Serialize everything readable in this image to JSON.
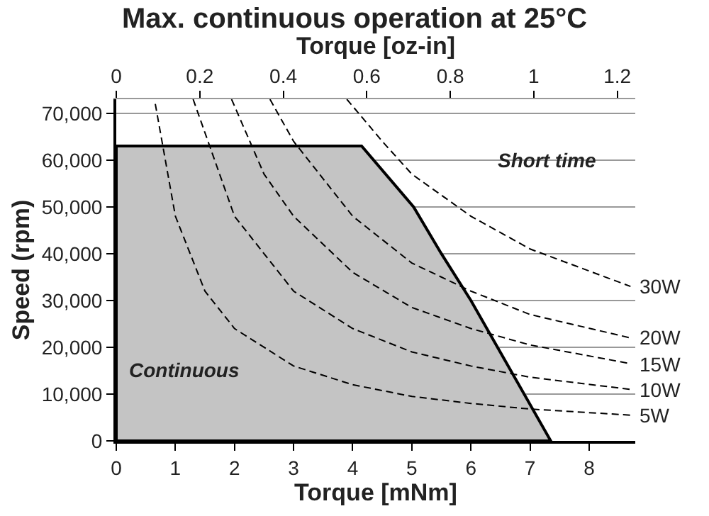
{
  "chart_data": {
    "type": "line",
    "title": "Max. continuous operation at 25°C",
    "xlabel": "Torque [mNm]",
    "ylabel": "Speed (rpm)",
    "x2label": "Torque [oz-in]",
    "xlim": [
      0,
      8.78
    ],
    "xticks": [
      0,
      1,
      2,
      3,
      4,
      5,
      6,
      7,
      8
    ],
    "x2lim": [
      0,
      1.243
    ],
    "x2ticks": [
      0,
      0.2,
      0.4,
      0.6,
      0.8,
      1,
      1.2
    ],
    "ylim": [
      0,
      73000
    ],
    "yticks": [
      0,
      {
        "value": 10000,
        "label": "10,000"
      },
      {
        "value": 20000,
        "label": "20,000"
      },
      {
        "value": 30000,
        "label": "30,000"
      },
      {
        "value": 40000,
        "label": "40,000"
      },
      {
        "value": 50000,
        "label": "50,000"
      },
      {
        "value": 60000,
        "label": "60,000"
      },
      {
        "value": 70000,
        "label": "70,000"
      }
    ],
    "grid": "y",
    "legend": false,
    "series": [
      {
        "type": "area",
        "color": "#c4c4c4",
        "x": [
          0,
          0,
          4.15,
          5.03,
          5.5,
          6.0,
          7.35
        ],
        "values": [
          0,
          63000,
          63000,
          50000,
          40000,
          30000,
          0
        ]
      },
      {
        "name": "5W",
        "color": "#000000",
        "line_style": "dashed",
        "x": [
          0.66,
          1,
          1.5,
          2,
          3,
          4,
          5,
          6,
          7,
          8.7
        ],
        "values": [
          72000,
          48000,
          32000,
          24000,
          16000,
          12000,
          9500,
          8000,
          6800,
          5500
        ]
      },
      {
        "name": "10W",
        "color": "#000000",
        "line_style": "dashed",
        "x": [
          1.3,
          2,
          3,
          4,
          5,
          6,
          7,
          8.7
        ],
        "values": [
          73000,
          48000,
          32000,
          24000,
          19000,
          16000,
          13600,
          11000
        ]
      },
      {
        "name": "15W",
        "color": "#000000",
        "line_style": "dashed",
        "x": [
          1.95,
          2.5,
          3,
          4,
          5,
          6,
          7,
          8.7
        ],
        "values": [
          73000,
          57000,
          48000,
          36000,
          28500,
          24000,
          20500,
          16500
        ]
      },
      {
        "name": "20W",
        "color": "#000000",
        "line_style": "dashed",
        "x": [
          2.6,
          3,
          4,
          5,
          6,
          7,
          8.7
        ],
        "values": [
          73000,
          64000,
          48000,
          38000,
          32000,
          27000,
          22000
        ]
      },
      {
        "name": "30W",
        "color": "#000000",
        "line_style": "dashed",
        "x": [
          3.9,
          4.5,
          5,
          6,
          7,
          8.7
        ],
        "values": [
          73000,
          64000,
          57000,
          48000,
          41000,
          33000
        ]
      }
    ],
    "annotations": [
      "Short time",
      "Continuous"
    ]
  }
}
